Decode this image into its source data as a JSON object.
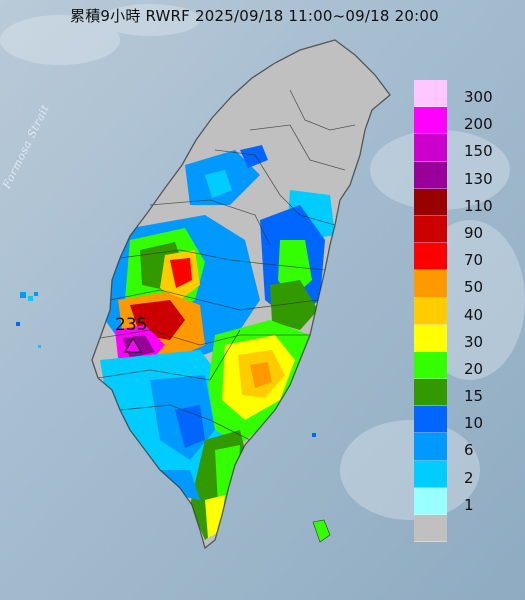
{
  "title": "累積9小時 RWRF 2025/09/18 11:00~09/18 20:00",
  "strait_label": "Formosa Strait",
  "peak_label": "235",
  "legend": [
    {
      "label": "300",
      "color": "#ffc6ff"
    },
    {
      "label": "200",
      "color": "#ff00ff"
    },
    {
      "label": "150",
      "color": "#cc00cc"
    },
    {
      "label": "130",
      "color": "#990099"
    },
    {
      "label": "110",
      "color": "#990000"
    },
    {
      "label": "90",
      "color": "#cc0000"
    },
    {
      "label": "70",
      "color": "#ff0000"
    },
    {
      "label": "50",
      "color": "#ff9900"
    },
    {
      "label": "40",
      "color": "#ffcc00"
    },
    {
      "label": "30",
      "color": "#ffff00"
    },
    {
      "label": "20",
      "color": "#33ff00"
    },
    {
      "label": "15",
      "color": "#339900"
    },
    {
      "label": "10",
      "color": "#0066ff"
    },
    {
      "label": "6",
      "color": "#0099ff"
    },
    {
      "label": "2",
      "color": "#00ccff"
    },
    {
      "label": "1",
      "color": "#99ffff"
    },
    {
      "label": "",
      "color": "#c0c0c0"
    }
  ]
}
